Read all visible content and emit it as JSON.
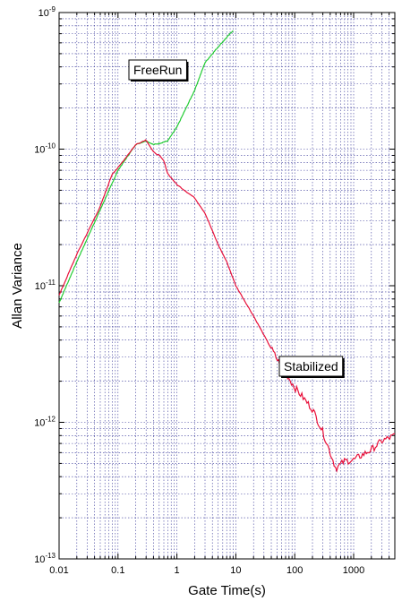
{
  "chart_data": {
    "type": "line",
    "title": "",
    "xlabel": "Gate Time(s)",
    "ylabel": "Allan Variance",
    "x_scale": "log",
    "y_scale": "log",
    "xlim": [
      0.01,
      5000
    ],
    "ylim": [
      1e-13,
      1e-09
    ],
    "grid": true,
    "x_tick_labels": [
      "0.01",
      "0.1",
      "1",
      "10",
      "100",
      "1000"
    ],
    "y_tick_labels": [
      {
        "base": "10",
        "exp": "-9"
      },
      {
        "base": "10",
        "exp": "-10"
      },
      {
        "base": "10",
        "exp": "-11"
      },
      {
        "base": "10",
        "exp": "-12"
      },
      {
        "base": "10",
        "exp": "-13"
      }
    ],
    "colors": {
      "FreeRun": "#22cc33",
      "Stabilized": "#e8103a",
      "grid": "#3a3a9a"
    },
    "series": [
      {
        "name": "FreeRun",
        "x": [
          0.01,
          0.02,
          0.05,
          0.1,
          0.2,
          0.3,
          0.4,
          0.5,
          0.7,
          1,
          2,
          3,
          5,
          8,
          9
        ],
        "y": [
          7.5e-12,
          1.5e-11,
          3.6e-11,
          7e-11,
          1.08e-10,
          1.15e-10,
          1.08e-10,
          1.1e-10,
          1.15e-10,
          1.45e-10,
          2.7e-10,
          4.3e-10,
          5.6e-10,
          7e-10,
          7.4e-10
        ]
      },
      {
        "name": "Stabilized",
        "x": [
          0.01,
          0.02,
          0.05,
          0.08,
          0.1,
          0.2,
          0.3,
          0.4,
          0.5,
          0.6,
          0.7,
          1,
          2,
          3,
          5,
          7,
          10,
          20,
          50,
          100,
          200,
          300,
          400,
          500,
          700,
          1000,
          2000,
          3000,
          5000
        ],
        "y": [
          8.5e-12,
          1.7e-11,
          3.8e-11,
          6.6e-11,
          7.3e-11,
          1.08e-10,
          1.17e-10,
          9.5e-11,
          9e-11,
          8.2e-11,
          6.6e-11,
          5.5e-11,
          4.4e-11,
          3.4e-11,
          2e-11,
          1.5e-11,
          1e-11,
          6e-12,
          2.9e-12,
          1.8e-12,
          1.25e-12,
          8.5e-13,
          6e-13,
          4.6e-13,
          5.2e-13,
          5.3e-13,
          6.3e-13,
          7.3e-13,
          8e-13
        ]
      }
    ],
    "annotations": [
      {
        "text": "FreeRun",
        "target_series": "FreeRun"
      },
      {
        "text": "Stabilized",
        "target_series": "Stabilized"
      }
    ]
  }
}
